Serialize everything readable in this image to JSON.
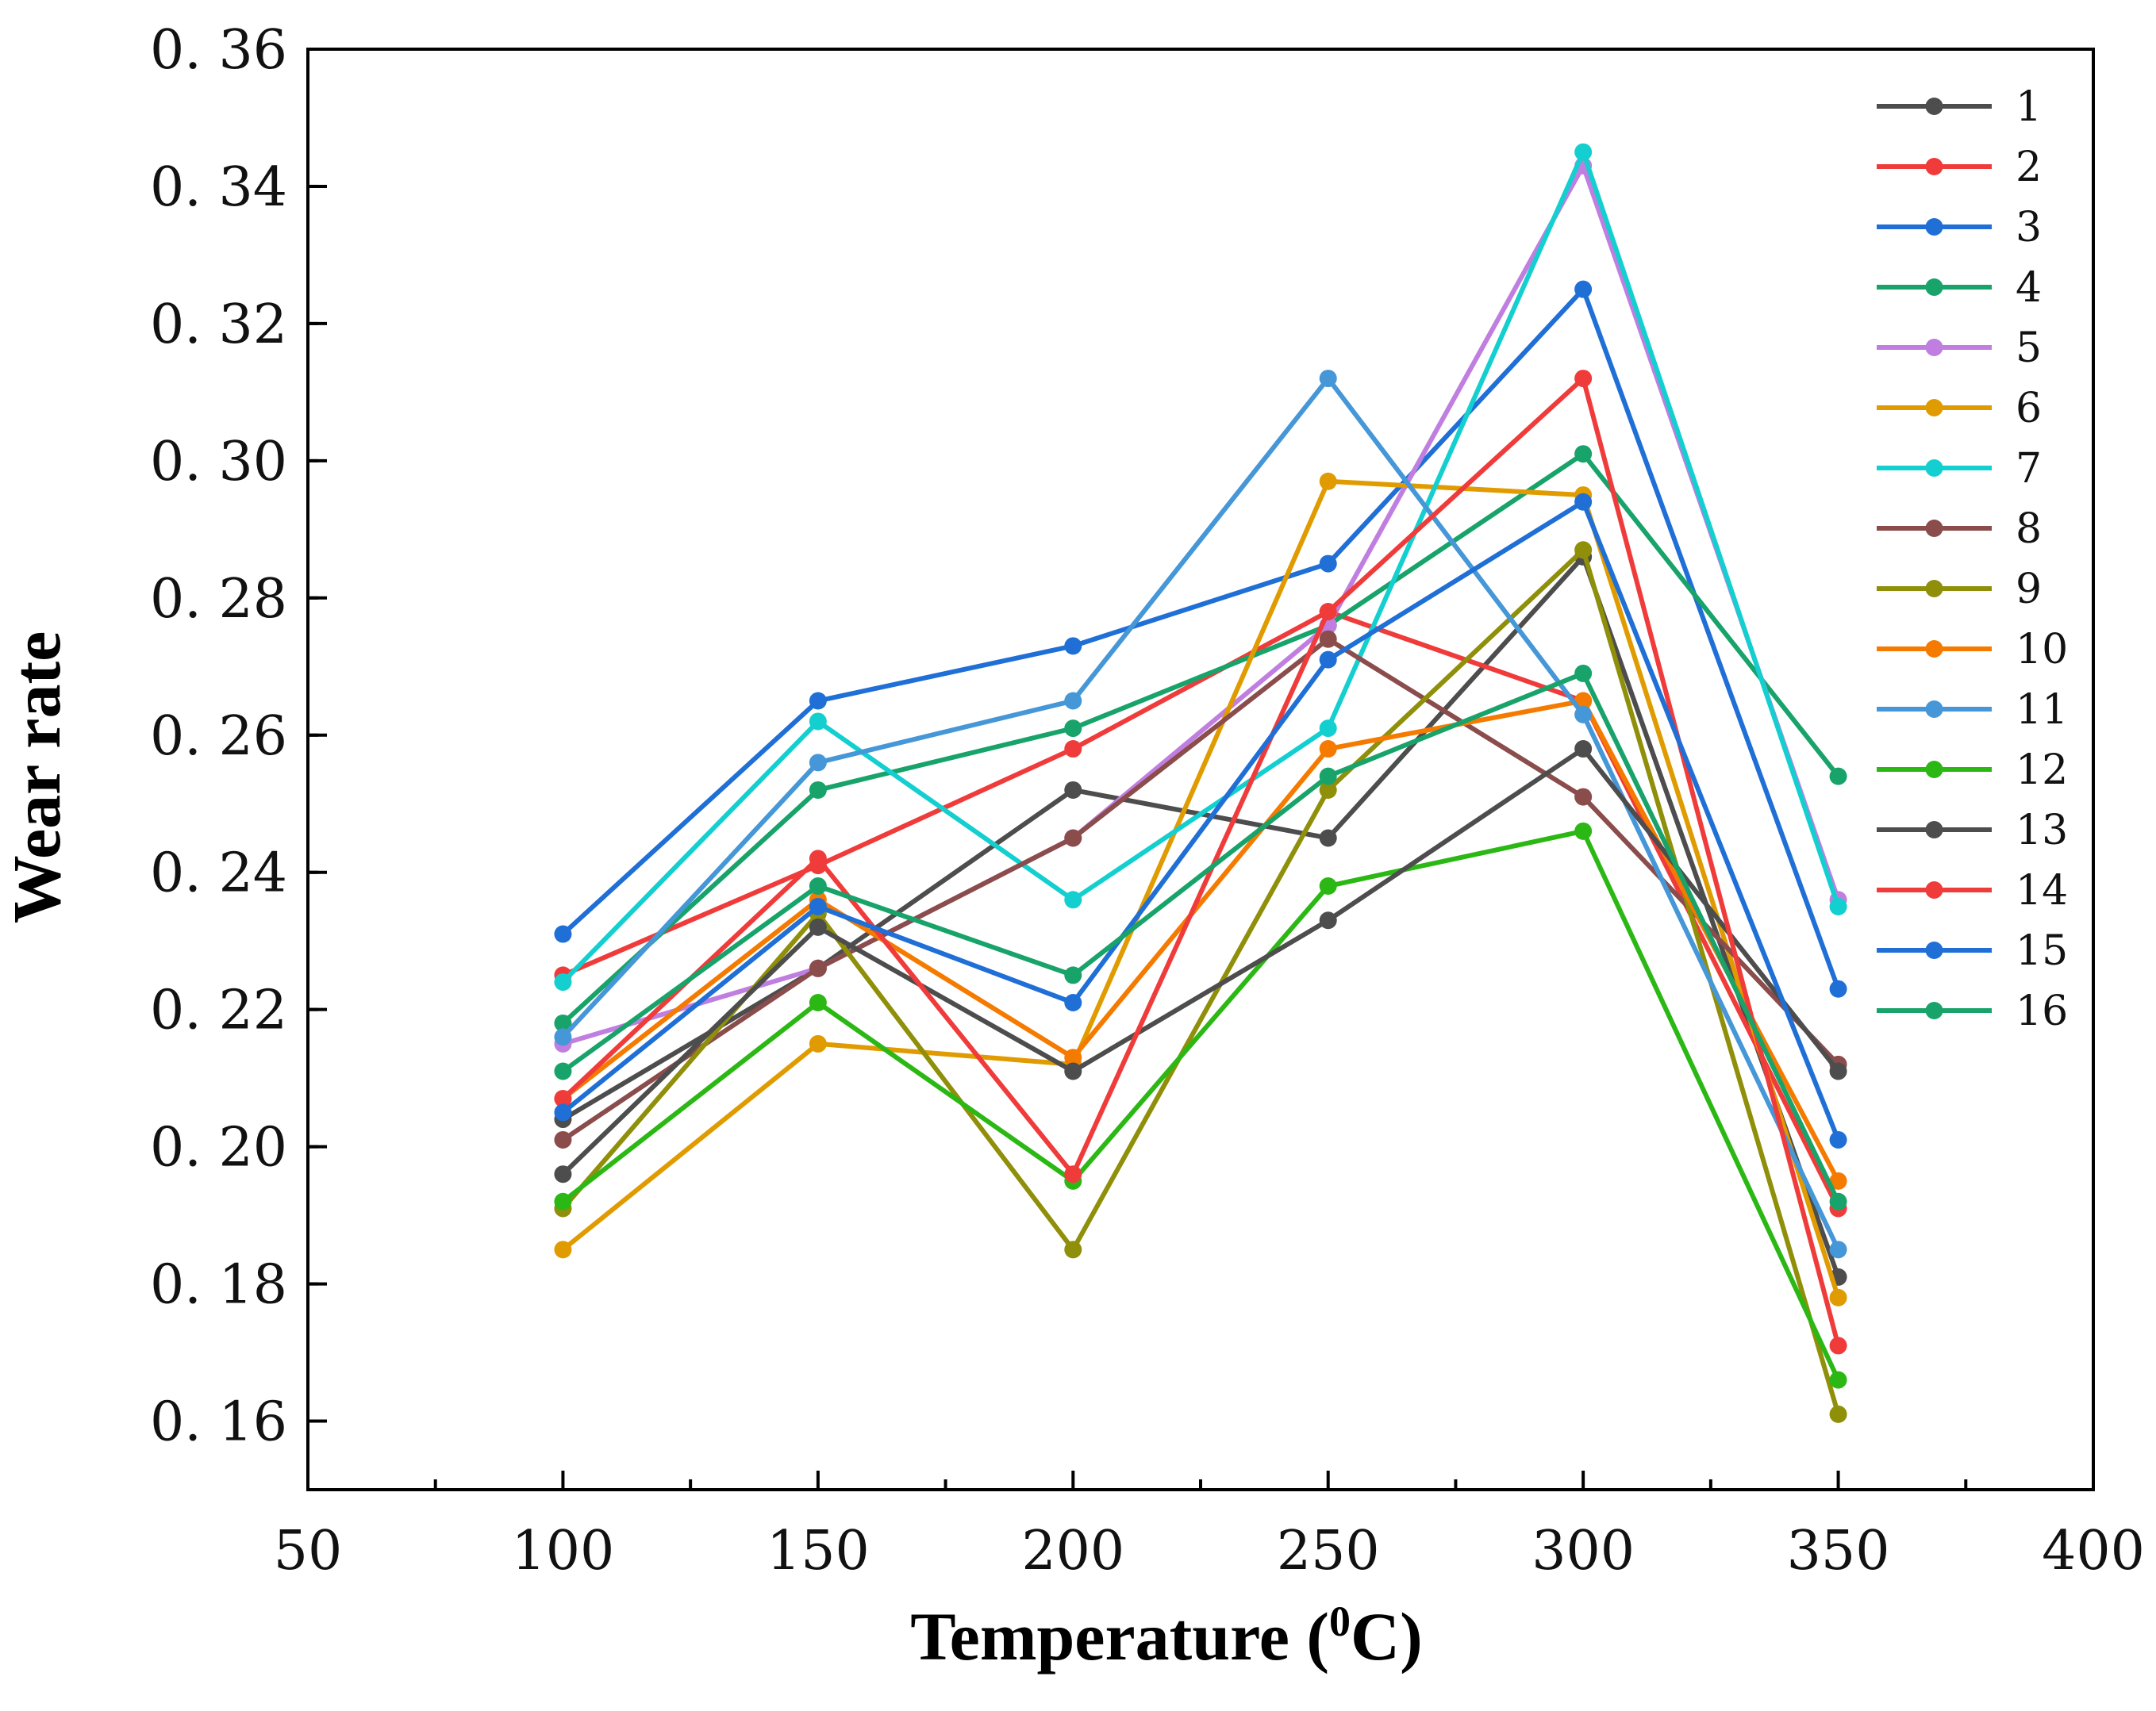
{
  "chart_data": {
    "type": "line",
    "title": "",
    "xlabel": "Temperature (",
    "xlabel_sup": "0",
    "xlabel_end": "C)",
    "ylabel": "Wear rate",
    "xlim": [
      50,
      400
    ],
    "ylim": [
      0.15,
      0.36
    ],
    "x_ticks": [
      "50",
      "100",
      "150",
      "200",
      "250",
      "300",
      "350",
      "400"
    ],
    "y_ticks": [
      "0. 16",
      "0. 18",
      "0. 20",
      "0. 22",
      "0. 24",
      "0. 26",
      "0. 28",
      "0. 30",
      "0. 32",
      "0. 34",
      "0. 36"
    ],
    "grid": false,
    "legend_position": "top-right",
    "x": [
      100,
      150,
      200,
      250,
      300,
      350
    ],
    "series": [
      {
        "name": "1",
        "color": "#4d4d4d",
        "values": [
          0.204,
          0.226,
          0.252,
          0.245,
          0.286,
          0.181
        ]
      },
      {
        "name": "2",
        "color": "#f03b3b",
        "values": [
          0.225,
          0.241,
          0.258,
          0.278,
          0.265,
          0.191
        ]
      },
      {
        "name": "3",
        "color": "#1f6fd6",
        "values": [
          0.231,
          0.265,
          0.273,
          0.285,
          0.325,
          0.223
        ]
      },
      {
        "name": "4",
        "color": "#18a36a",
        "values": [
          0.218,
          0.252,
          0.261,
          0.276,
          0.301,
          0.254
        ]
      },
      {
        "name": "5",
        "color": "#c07ee0",
        "values": [
          0.215,
          0.226,
          0.245,
          0.276,
          0.343,
          0.236
        ]
      },
      {
        "name": "6",
        "color": "#e09b00",
        "values": [
          0.185,
          0.215,
          0.212,
          0.297,
          0.295,
          0.178
        ]
      },
      {
        "name": "7",
        "color": "#14cfcf",
        "values": [
          0.224,
          0.262,
          0.236,
          0.261,
          0.345,
          0.235
        ]
      },
      {
        "name": "8",
        "color": "#8b4c4c",
        "values": [
          0.201,
          0.226,
          0.245,
          0.274,
          0.251,
          0.212
        ]
      },
      {
        "name": "9",
        "color": "#8f8f0a",
        "values": [
          0.191,
          0.234,
          0.185,
          0.252,
          0.287,
          0.161
        ]
      },
      {
        "name": "10",
        "color": "#f57a00",
        "values": [
          0.207,
          0.236,
          0.213,
          0.258,
          0.265,
          0.195
        ]
      },
      {
        "name": "11",
        "color": "#4597d8",
        "values": [
          0.216,
          0.256,
          0.265,
          0.312,
          0.263,
          0.185
        ]
      },
      {
        "name": "12",
        "color": "#2bb814",
        "values": [
          0.192,
          0.221,
          0.195,
          0.238,
          0.246,
          0.166
        ]
      },
      {
        "name": "13",
        "color": "#4d4d4d",
        "values": [
          0.196,
          0.232,
          0.211,
          0.233,
          0.258,
          0.211
        ]
      },
      {
        "name": "14",
        "color": "#f03b3b",
        "values": [
          0.207,
          0.242,
          0.196,
          0.278,
          0.312,
          0.171
        ]
      },
      {
        "name": "15",
        "color": "#1f6fd6",
        "values": [
          0.205,
          0.235,
          0.221,
          0.271,
          0.294,
          0.201
        ]
      },
      {
        "name": "16",
        "color": "#18a36a",
        "values": [
          0.211,
          0.238,
          0.225,
          0.254,
          0.269,
          0.192
        ]
      }
    ]
  }
}
